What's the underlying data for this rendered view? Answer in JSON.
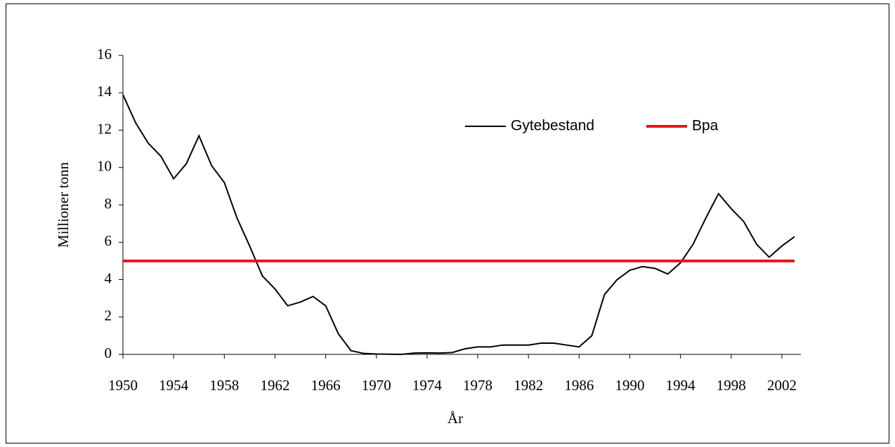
{
  "chart_data": {
    "type": "line",
    "x_label": "År",
    "y_label": "Millioner tonn",
    "x": [
      1950,
      1951,
      1952,
      1953,
      1954,
      1955,
      1956,
      1957,
      1958,
      1959,
      1960,
      1961,
      1962,
      1963,
      1964,
      1965,
      1966,
      1967,
      1968,
      1969,
      1970,
      1971,
      1972,
      1973,
      1974,
      1975,
      1976,
      1977,
      1978,
      1979,
      1980,
      1981,
      1982,
      1983,
      1984,
      1985,
      1986,
      1987,
      1988,
      1989,
      1990,
      1991,
      1992,
      1993,
      1994,
      1995,
      1996,
      1997,
      1998,
      1999,
      2000,
      2001,
      2002,
      2003
    ],
    "series": [
      {
        "name": "Gytebestand",
        "color": "#000000",
        "values": [
          13.9,
          12.4,
          11.3,
          10.6,
          9.4,
          10.2,
          11.7,
          10.1,
          9.2,
          7.3,
          5.8,
          4.2,
          3.5,
          2.6,
          2.8,
          3.1,
          2.6,
          1.1,
          0.2,
          0.05,
          0.02,
          0.01,
          0.0,
          0.07,
          0.08,
          0.07,
          0.1,
          0.3,
          0.4,
          0.4,
          0.5,
          0.5,
          0.5,
          0.6,
          0.6,
          0.5,
          0.4,
          1.0,
          3.2,
          4.0,
          4.5,
          4.7,
          4.6,
          4.3,
          4.9,
          5.9,
          7.3,
          8.6,
          7.8,
          7.1,
          5.9,
          5.2,
          5.8,
          6.3
        ]
      },
      {
        "name": "Bpa",
        "color": "#e8141e",
        "values": [
          5,
          5,
          5,
          5,
          5,
          5,
          5,
          5,
          5,
          5,
          5,
          5,
          5,
          5,
          5,
          5,
          5,
          5,
          5,
          5,
          5,
          5,
          5,
          5,
          5,
          5,
          5,
          5,
          5,
          5,
          5,
          5,
          5,
          5,
          5,
          5,
          5,
          5,
          5,
          5,
          5,
          5,
          5,
          5,
          5,
          5,
          5,
          5,
          5,
          5,
          5,
          5,
          5,
          5
        ]
      }
    ],
    "xlim": [
      1950,
      2003.5
    ],
    "xticks": [
      1950,
      1954,
      1958,
      1962,
      1966,
      1970,
      1974,
      1978,
      1982,
      1986,
      1990,
      1994,
      1998,
      2002
    ],
    "ylim": [
      0,
      16
    ],
    "yticks": [
      0,
      2,
      4,
      6,
      8,
      10,
      12,
      14,
      16
    ],
    "legend": "upper right"
  }
}
